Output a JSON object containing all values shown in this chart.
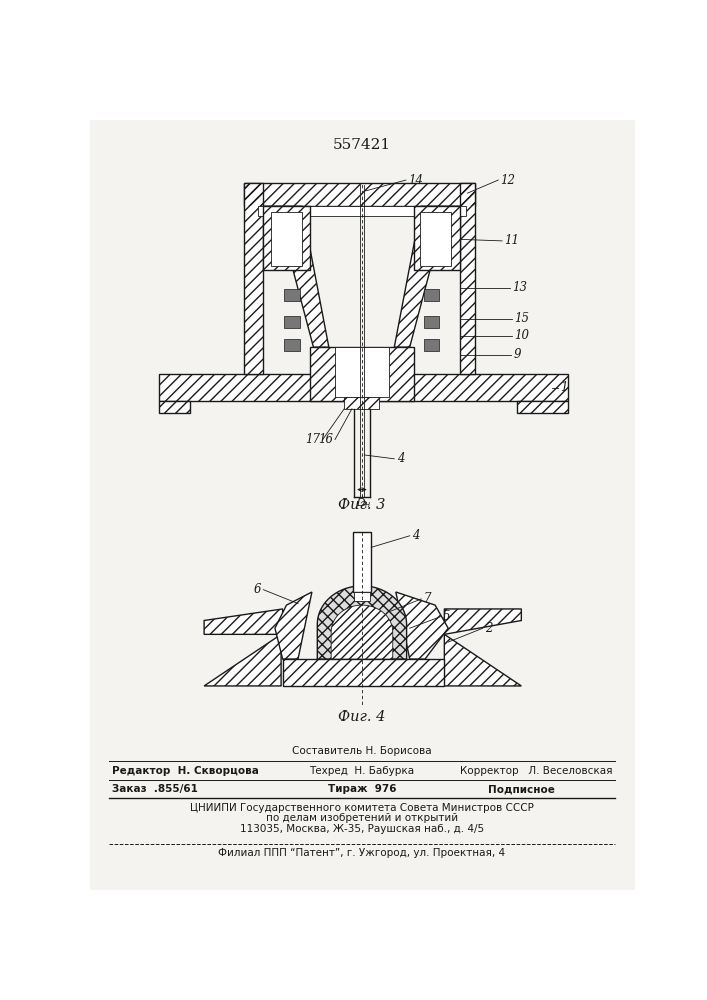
{
  "patent_number": "557421",
  "fig3_label": "Фиг. 3",
  "fig4_label": "Фиг. 4",
  "bg_color": "#f5f3ef",
  "line_color": "#1a1a1a",
  "footer": {
    "line1_center_top": "Составитель Н. Борисова",
    "line1_left": "Редактор  Н. Скворцова",
    "line1_center": "Техред  Н. Бабурка",
    "line1_right": "Корректор   Л. Веселовская",
    "line2_left": "Заказ  .855/61",
    "line2_center": "Тираж  976",
    "line2_right": "Подписное",
    "line3": "ЦНИИПИ Государственного комитета Совета Министров СССР",
    "line4": "по делам изобретений и открытий",
    "line5": "113035, Москва, Ж-35, Раушская наб., д. 4/5",
    "line6": "Филиал ППП “Патент”, г. Ужгород, ул. Проектная, 4"
  }
}
